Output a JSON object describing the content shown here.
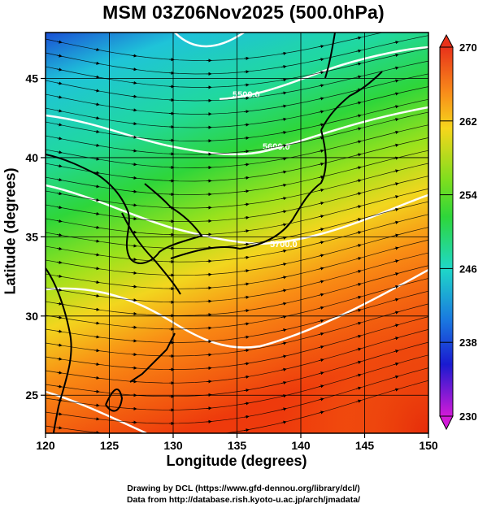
{
  "title": "MSM 03Z06Nov2025 (500.0hPa)",
  "x_axis_title": "Longitude (degrees)",
  "y_axis_title": "Latitude  (degrees)",
  "x_ticks": [
    "120",
    "125",
    "130",
    "135",
    "140",
    "145",
    "150"
  ],
  "y_ticks": [
    "25",
    "30",
    "35",
    "40",
    "45"
  ],
  "colorbar": {
    "ticks": [
      "270",
      "262",
      "254",
      "246",
      "238",
      "230"
    ],
    "min": 230,
    "max": 270
  },
  "contour_labels": [
    "5500.0",
    "5600.0",
    "5700.0"
  ],
  "credits": {
    "line1": "Drawing by DCL (https://www.gfd-dennou.org/library/dcl/)",
    "line2": "Data from http://database.rish.kyoto-u.ac.jp/arch/jmadata/"
  }
}
